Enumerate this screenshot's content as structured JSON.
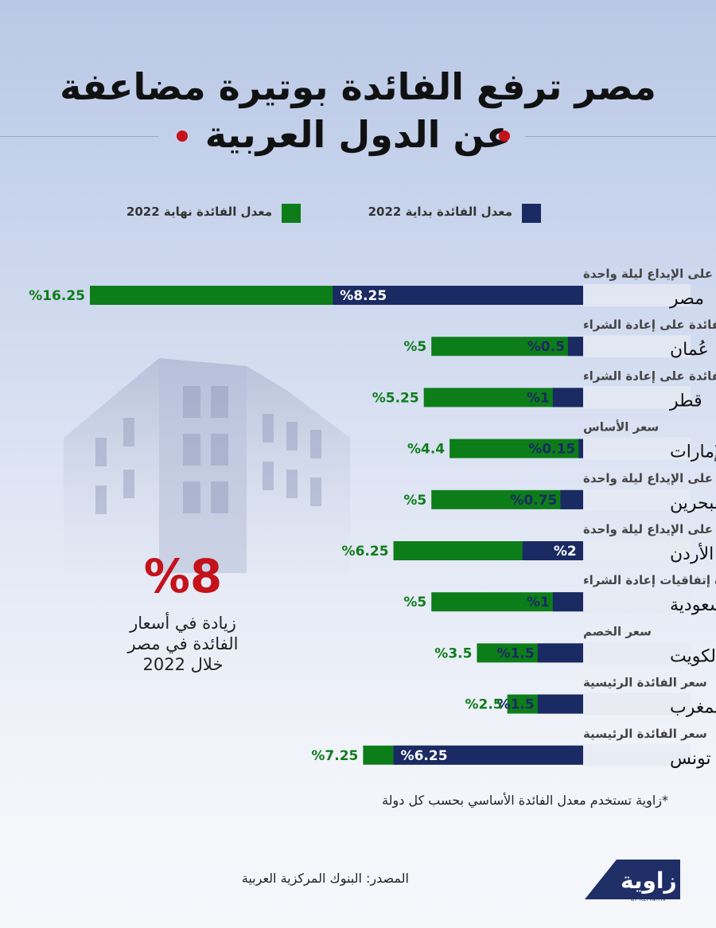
{
  "header": {
    "title_line1": "مصر ترفع الفائدة بوتيرة مضاعفة",
    "title_line2": "عن الدول العربية"
  },
  "colors": {
    "start_bar": "#1a2a63",
    "end_bar": "#0d7d1a",
    "accent_red": "#c4121b",
    "end_label": "#0d7d1a",
    "row_band": "#e6eaf3"
  },
  "legend": {
    "start": "معدل الفائدة بداية 2022",
    "end": "معدل الفائدة نهاية 2022"
  },
  "highlight": {
    "value": "%8",
    "note_line1": "زيادة في أسعار",
    "note_line2": "الفائدة في مصر",
    "note_line3": "خلال 2022"
  },
  "chart_data": {
    "type": "bar",
    "orientation": "horizontal",
    "series": [
      {
        "name": "معدل الفائدة بداية 2022",
        "values": [
          8.25,
          0.5,
          1,
          0.15,
          0.75,
          2,
          1,
          1.5,
          1.5,
          6.25
        ]
      },
      {
        "name": "معدل الفائدة نهاية 2022",
        "values": [
          16.25,
          5,
          5.25,
          4.4,
          5,
          6.25,
          5,
          3.5,
          2.5,
          7.25
        ]
      }
    ],
    "categories": [
      "مصر",
      "عُمان",
      "قطر",
      "الإمارات",
      "البحرين",
      "الأردن",
      "السعودية",
      "الكويت",
      "المغرب",
      "تونس"
    ],
    "rate_types": [
      "الفائدة على الإيداع ليلة واحدة",
      "الفائدة على إعادة الشراء",
      "الفائدة على إعادة الشراء",
      "سعر الأساس",
      "الفائدة على الإيداع ليلة واحدة",
      "الفائدة على الإيداع ليلة واحدة",
      "فائدة  إتفاقيات إعادة الشراء",
      "سعر الخصم",
      "سعر الفائدة الرئيسية",
      "سعر الفائدة الرئيسية"
    ],
    "start_labels": [
      "%8.25",
      "%0.5",
      "%1",
      "%0.15",
      "%0.75",
      "%2",
      "%1",
      "%1.5",
      "%1.5",
      "%6.25"
    ],
    "end_labels": [
      "%16.25",
      "%5",
      "%5.25",
      "%4.4",
      "%5",
      "%6.25",
      "%5",
      "%3.5",
      "%2.5",
      "%7.25"
    ],
    "xlim": [
      0,
      16.25
    ],
    "grid": false,
    "legend_position": "top"
  },
  "footnote": "*زاوية تستخدم معدل الفائدة الأساسي بحسب كل دولة",
  "source": "المصدر: البنوك المركزية العربية",
  "logo": {
    "name": "زاوية",
    "sub": "BY REFINITIV"
  }
}
